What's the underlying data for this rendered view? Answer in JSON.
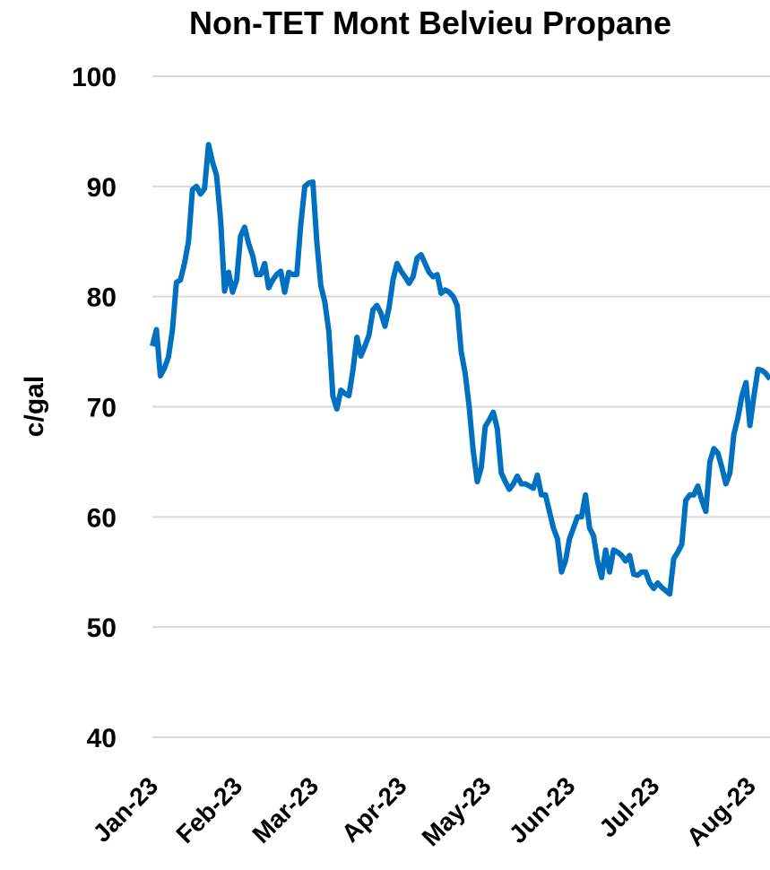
{
  "chart_data": {
    "type": "line",
    "title": "Non-TET Mont Belvieu Propane",
    "ylabel": "c/gal",
    "categories": [
      "Jan-23",
      null,
      null,
      null,
      null,
      null,
      null,
      null,
      null,
      null,
      null,
      null,
      null,
      null,
      null,
      null,
      null,
      null,
      null,
      null,
      null,
      "Feb-23",
      null,
      null,
      null,
      null,
      null,
      null,
      null,
      null,
      null,
      null,
      null,
      null,
      null,
      null,
      null,
      null,
      null,
      null,
      "Mar-23",
      null,
      null,
      null,
      null,
      null,
      null,
      null,
      null,
      null,
      null,
      null,
      null,
      null,
      null,
      null,
      null,
      null,
      null,
      null,
      null,
      null,
      "Apr-23",
      null,
      null,
      null,
      null,
      null,
      null,
      null,
      null,
      null,
      null,
      null,
      null,
      null,
      null,
      null,
      null,
      null,
      null,
      null,
      null,
      "May-23",
      null,
      null,
      null,
      null,
      null,
      null,
      null,
      null,
      null,
      null,
      null,
      null,
      null,
      null,
      null,
      null,
      null,
      null,
      null,
      null,
      "Jun-23",
      null,
      null,
      null,
      null,
      null,
      null,
      null,
      null,
      null,
      null,
      null,
      null,
      null,
      null,
      null,
      null,
      null,
      null,
      null,
      null,
      "Jul-23",
      null,
      null,
      null,
      null,
      null,
      null,
      null,
      null,
      null,
      null,
      null,
      null,
      null,
      null,
      null,
      null,
      null,
      null,
      null,
      null,
      null,
      null,
      null,
      "Aug-23",
      null,
      null,
      null,
      null,
      null
    ],
    "series": [
      {
        "name": "Non-TET Mont Belvieu Propane",
        "color": "#0070c0",
        "values": [
          75.5,
          77,
          72.8,
          73.5,
          74.5,
          77,
          81.3,
          81.5,
          83,
          85,
          89.7,
          90,
          89.3,
          89.8,
          93.8,
          92.2,
          91,
          87,
          80.5,
          82.2,
          80.4,
          81.5,
          85.5,
          86.3,
          84.8,
          83.7,
          82,
          82,
          83,
          80.8,
          81.5,
          82,
          82.3,
          80.4,
          82.2,
          82,
          82,
          86.5,
          90,
          90.3,
          90.4,
          85,
          81,
          79.5,
          76.8,
          71,
          69.8,
          71.5,
          71.2,
          71,
          73.3,
          76.3,
          74.6,
          75.5,
          76.5,
          78.8,
          79.2,
          78.5,
          77.3,
          79,
          81.5,
          83,
          82.3,
          81.8,
          81.2,
          81.8,
          83.5,
          83.8,
          83,
          82.2,
          81.8,
          82,
          80.3,
          80.6,
          80.4,
          80,
          79.2,
          75,
          73,
          70,
          66,
          63.2,
          64.5,
          68.2,
          68.8,
          69.5,
          68,
          64,
          63.2,
          62.5,
          63,
          63.7,
          63,
          63,
          62.8,
          62.6,
          63.8,
          62,
          62,
          60.5,
          59,
          58,
          55,
          56,
          58,
          59,
          60,
          60,
          62,
          59,
          58.3,
          56,
          54.5,
          57,
          55,
          57,
          56.8,
          56.5,
          56,
          56.5,
          54.8,
          54.7,
          55,
          55,
          54,
          53.5,
          54,
          53.6,
          53.3,
          53,
          56.2,
          56.8,
          57.5,
          61.5,
          62,
          62,
          62.8,
          61.5,
          60.5,
          65,
          66.2,
          65.8,
          64.5,
          63,
          64,
          67.5,
          69,
          71,
          72.2,
          68.3,
          71,
          73.4,
          73.3,
          73,
          72.5
        ]
      }
    ],
    "ylim": [
      40,
      100
    ],
    "yticks": [
      40,
      50,
      60,
      70,
      80,
      90,
      100
    ],
    "grid": true
  }
}
